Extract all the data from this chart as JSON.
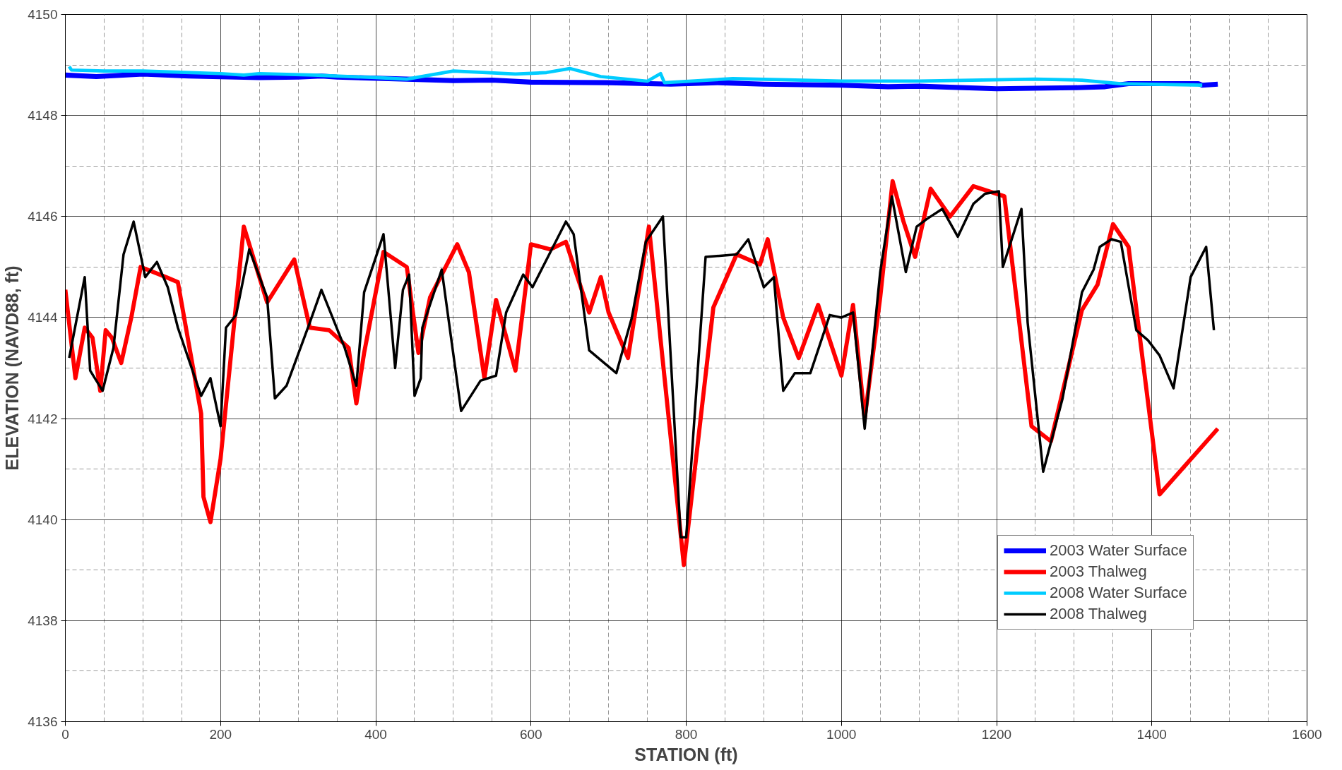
{
  "chart_data": {
    "type": "line",
    "xlabel": "STATION (ft)",
    "ylabel": "ELEVATION (NAVD88, ft)",
    "xlim": [
      0,
      1600
    ],
    "ylim": [
      4136,
      4150
    ],
    "xticks": [
      0,
      200,
      400,
      600,
      800,
      1000,
      1200,
      1400,
      1600
    ],
    "yticks": [
      4136,
      4138,
      4140,
      4142,
      4144,
      4146,
      4148,
      4150
    ],
    "grid": true,
    "legend": "bottom right",
    "marker": "none",
    "line_style": "solid",
    "series": [
      {
        "name": "2003 Water Surface",
        "color": "#0000ff",
        "x": [
          0,
          40,
          100,
          160,
          250,
          300,
          330,
          350,
          440,
          500,
          550,
          600,
          700,
          780,
          840,
          900,
          1000,
          1060,
          1100,
          1200,
          1300,
          1340,
          1370,
          1460,
          1465,
          1485
        ],
        "values": [
          4148.8,
          4148.77,
          4148.82,
          4148.78,
          4148.75,
          4148.76,
          4148.78,
          4148.76,
          4148.72,
          4148.69,
          4148.7,
          4148.66,
          4148.65,
          4148.62,
          4148.65,
          4148.62,
          4148.6,
          4148.57,
          4148.58,
          4148.53,
          4148.55,
          4148.57,
          4148.63,
          4148.63,
          4148.6,
          4148.62
        ]
      },
      {
        "name": "2003 Thalweg",
        "color": "#ff0000",
        "x": [
          0,
          13,
          25,
          35,
          45,
          52,
          60,
          72,
          85,
          97,
          130,
          145,
          175,
          178,
          187,
          200,
          230,
          260,
          295,
          315,
          340,
          365,
          375,
          385,
          410,
          440,
          455,
          470,
          505,
          520,
          540,
          555,
          580,
          600,
          625,
          645,
          675,
          690,
          700,
          725,
          752,
          797,
          835,
          865,
          895,
          905,
          925,
          945,
          970,
          1000,
          1015,
          1030,
          1050,
          1066,
          1080,
          1095,
          1115,
          1140,
          1170,
          1210,
          1245,
          1270,
          1310,
          1330,
          1350,
          1370,
          1410,
          1485
        ],
        "values": [
          4144.55,
          4142.8,
          4143.8,
          4143.6,
          4142.55,
          4143.75,
          4143.6,
          4143.1,
          4144.0,
          4145.0,
          4144.8,
          4144.7,
          4142.1,
          4140.45,
          4139.95,
          4141.2,
          4145.8,
          4144.3,
          4145.15,
          4143.8,
          4143.75,
          4143.4,
          4142.3,
          4143.3,
          4145.3,
          4145.0,
          4143.3,
          4144.4,
          4145.45,
          4144.9,
          4142.8,
          4144.35,
          4142.95,
          4145.45,
          4145.35,
          4145.5,
          4144.1,
          4144.8,
          4144.1,
          4143.2,
          4145.8,
          4139.1,
          4144.2,
          4145.25,
          4145.05,
          4145.55,
          4144.0,
          4143.2,
          4144.25,
          4142.85,
          4144.25,
          4142.0,
          4144.4,
          4146.7,
          4145.9,
          4145.2,
          4146.55,
          4146.0,
          4146.6,
          4146.4,
          4141.85,
          4141.55,
          4144.15,
          4144.65,
          4145.85,
          4145.4,
          4140.5,
          4141.8
        ]
      },
      {
        "name": "2008 Water Surface",
        "color": "#00ccff",
        "x": [
          5,
          8,
          50,
          100,
          200,
          230,
          250,
          320,
          400,
          440,
          500,
          580,
          620,
          650,
          690,
          750,
          767,
          772,
          860,
          1000,
          1100,
          1250,
          1310,
          1360,
          1465
        ],
        "values": [
          4148.97,
          4148.9,
          4148.88,
          4148.88,
          4148.83,
          4148.8,
          4148.83,
          4148.8,
          4148.75,
          4148.72,
          4148.88,
          4148.82,
          4148.85,
          4148.93,
          4148.77,
          4148.68,
          4148.83,
          4148.65,
          4148.73,
          4148.68,
          4148.68,
          4148.72,
          4148.7,
          4148.63,
          4148.6
        ]
      },
      {
        "name": "2008 Thalweg",
        "color": "#000000",
        "x": [
          5,
          25,
          32,
          48,
          62,
          75,
          88,
          103,
          118,
          132,
          145,
          175,
          187,
          200,
          207,
          220,
          237,
          260,
          270,
          285,
          315,
          330,
          360,
          375,
          385,
          410,
          425,
          435,
          443,
          450,
          458,
          460,
          485,
          510,
          535,
          555,
          568,
          590,
          602,
          645,
          655,
          675,
          710,
          730,
          748,
          770,
          793,
          800,
          825,
          865,
          880,
          900,
          913,
          925,
          940,
          960,
          985,
          1000,
          1015,
          1030,
          1050,
          1065,
          1083,
          1097,
          1110,
          1130,
          1150,
          1170,
          1185,
          1203,
          1208,
          1232,
          1240,
          1260,
          1285,
          1310,
          1325,
          1333,
          1348,
          1360,
          1380,
          1395,
          1410,
          1428,
          1450,
          1470,
          1480
        ],
        "values": [
          4143.2,
          4144.8,
          4142.95,
          4142.55,
          4143.4,
          4145.25,
          4145.9,
          4144.8,
          4145.1,
          4144.6,
          4143.8,
          4142.45,
          4142.8,
          4141.85,
          4143.8,
          4144.05,
          4145.35,
          4144.4,
          4142.4,
          4142.65,
          4143.9,
          4144.55,
          4143.4,
          4142.65,
          4144.5,
          4145.65,
          4143.0,
          4144.55,
          4144.85,
          4142.45,
          4142.8,
          4143.8,
          4144.95,
          4142.15,
          4142.75,
          4142.85,
          4144.1,
          4144.85,
          4144.6,
          4145.9,
          4145.65,
          4143.35,
          4142.9,
          4144.0,
          4145.5,
          4146.0,
          4139.65,
          4139.65,
          4145.2,
          4145.25,
          4145.55,
          4144.6,
          4144.8,
          4142.55,
          4142.9,
          4142.9,
          4144.05,
          4144.0,
          4144.1,
          4141.8,
          4144.9,
          4146.4,
          4144.9,
          4145.8,
          4145.95,
          4146.15,
          4145.6,
          4146.25,
          4146.45,
          4146.5,
          4145.0,
          4146.15,
          4143.9,
          4140.95,
          4142.4,
          4144.5,
          4144.95,
          4145.4,
          4145.55,
          4145.5,
          4143.75,
          4143.55,
          4143.25,
          4142.6,
          4144.8,
          4145.4,
          4143.75
        ]
      }
    ]
  }
}
